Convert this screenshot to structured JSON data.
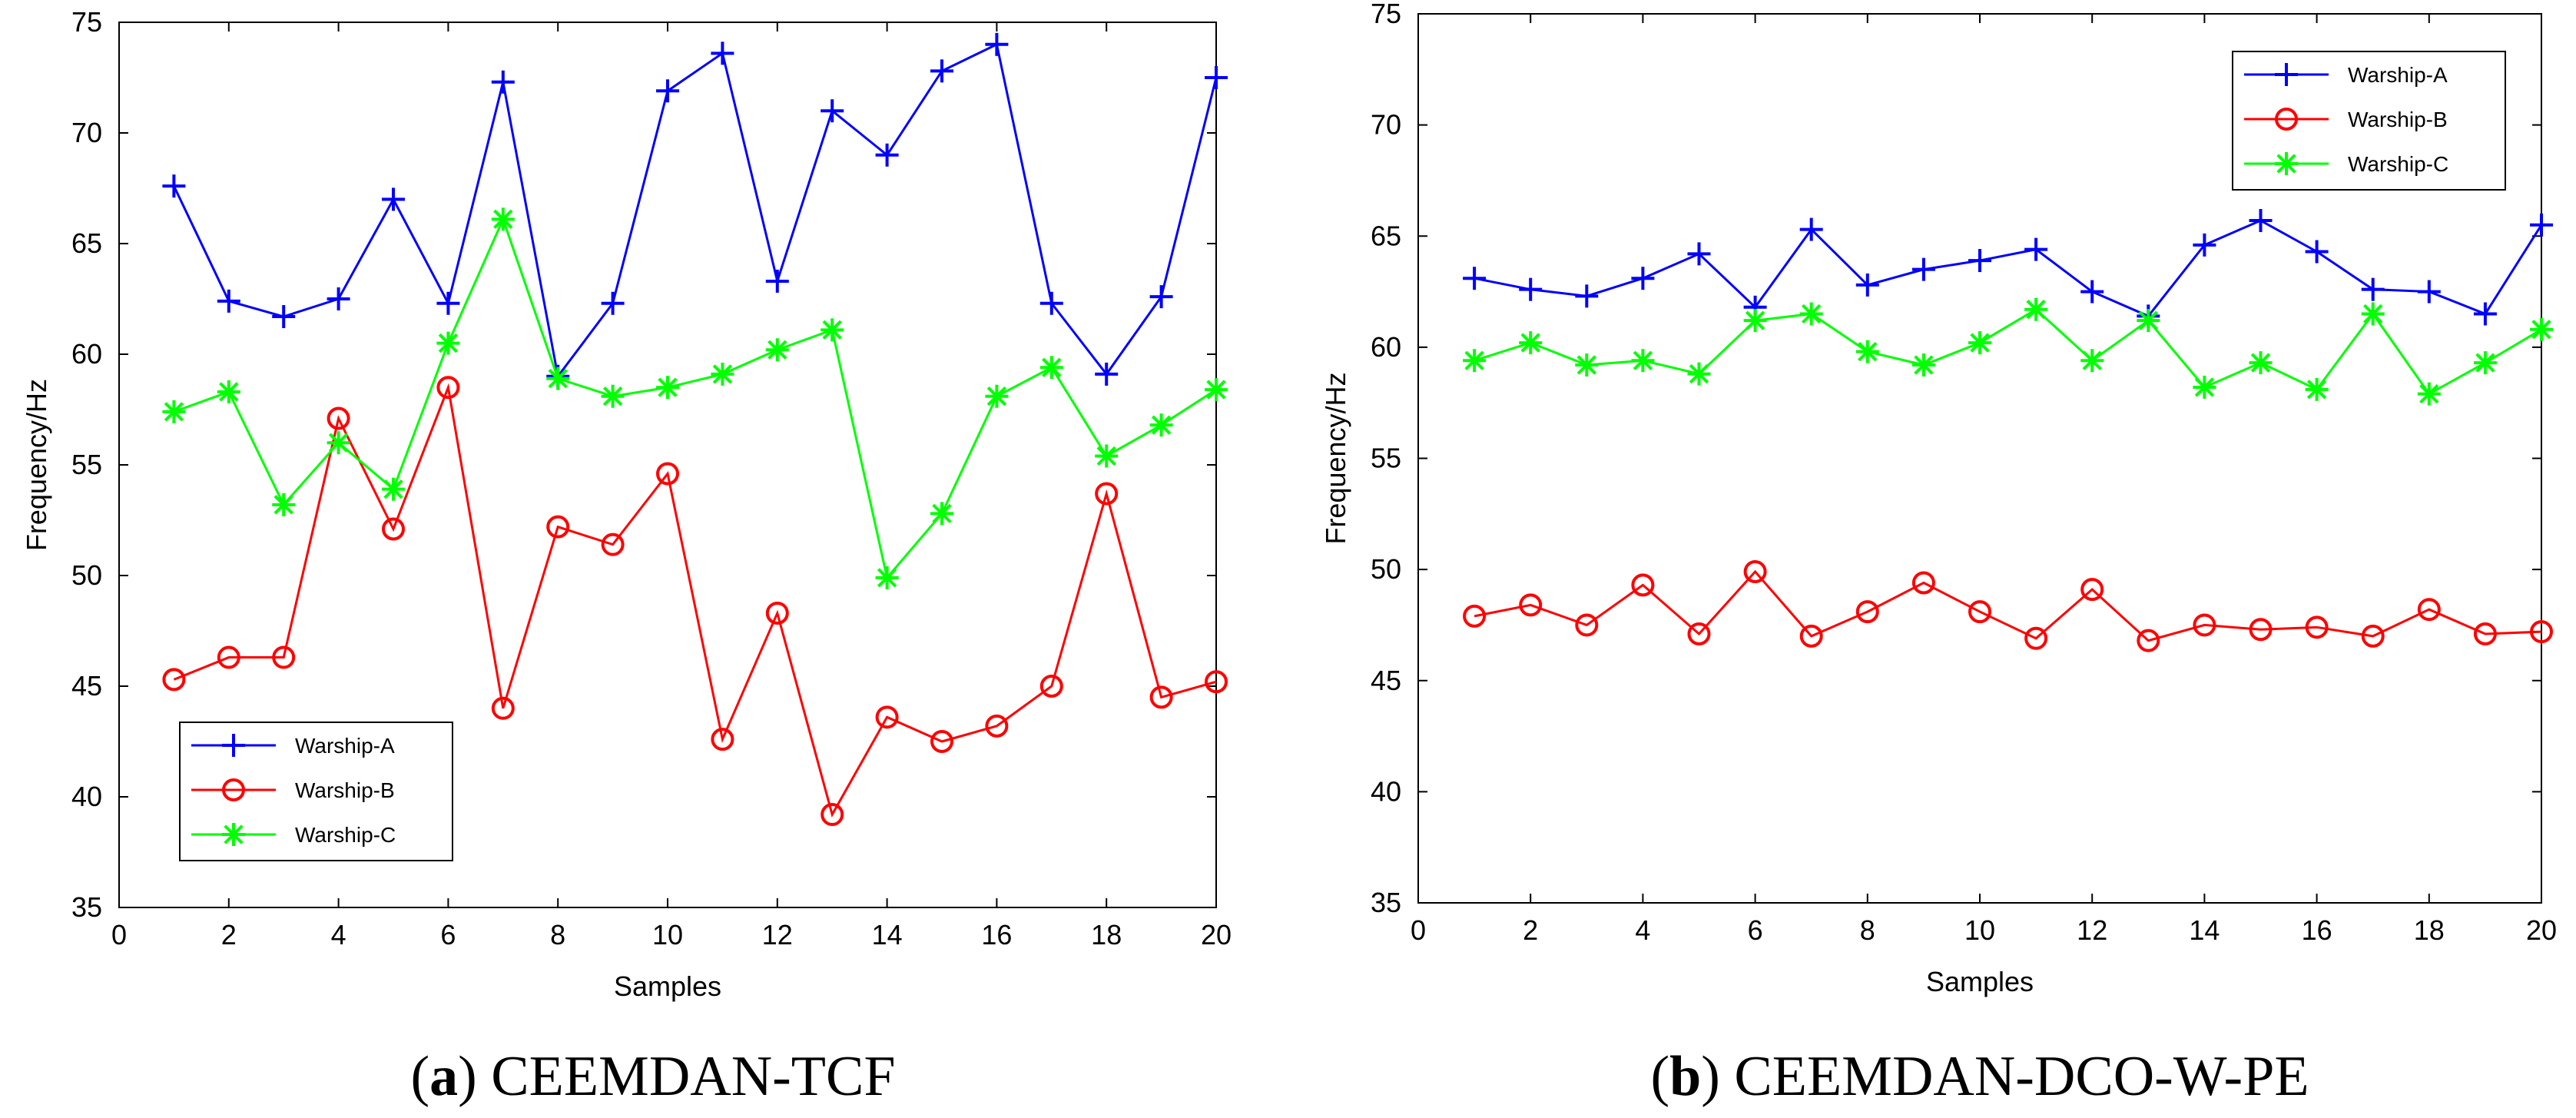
{
  "chart_data": [
    {
      "type": "line",
      "caption_letter": "a",
      "caption_text": "CEEMDAN-TCF",
      "xlabel": "Samples",
      "ylabel": "Frequency/Hz",
      "xlim": [
        0,
        20
      ],
      "ylim": [
        35,
        75
      ],
      "xticks": [
        0,
        2,
        4,
        6,
        8,
        10,
        12,
        14,
        16,
        18,
        20
      ],
      "yticks": [
        35,
        40,
        45,
        50,
        55,
        60,
        65,
        70,
        75
      ],
      "legend_position": "bottom-left",
      "x": [
        1,
        2,
        3,
        4,
        5,
        6,
        7,
        8,
        9,
        10,
        11,
        12,
        13,
        14,
        15,
        16,
        17,
        18,
        19,
        20
      ],
      "series": [
        {
          "name": "Warship-A",
          "color": "#0000ff",
          "marker": "plus",
          "values": [
            67.6,
            62.4,
            61.7,
            62.5,
            67.0,
            62.3,
            72.3,
            59.0,
            62.3,
            71.9,
            73.6,
            63.3,
            71.0,
            69.0,
            72.8,
            74.0,
            62.3,
            59.1,
            62.6,
            72.5
          ]
        },
        {
          "name": "Warship-B",
          "color": "#ff0000",
          "marker": "circle",
          "values": [
            45.3,
            46.3,
            46.3,
            57.1,
            52.1,
            58.5,
            44.0,
            52.2,
            51.4,
            54.6,
            42.6,
            48.3,
            39.2,
            43.6,
            42.5,
            43.2,
            45.0,
            53.7,
            44.5,
            45.2
          ]
        },
        {
          "name": "Warship-C",
          "color": "#00ff00",
          "marker": "asterisk",
          "values": [
            57.4,
            58.3,
            53.2,
            56.0,
            53.9,
            60.5,
            66.1,
            58.9,
            58.1,
            58.5,
            59.1,
            60.2,
            61.1,
            49.9,
            52.8,
            58.1,
            59.4,
            55.4,
            56.8,
            58.4
          ]
        }
      ]
    },
    {
      "type": "line",
      "caption_letter": "b",
      "caption_text": "CEEMDAN-DCO-W-PE",
      "xlabel": "Samples",
      "ylabel": "Frequency/Hz",
      "xlim": [
        0,
        20
      ],
      "ylim": [
        35,
        75
      ],
      "xticks": [
        0,
        2,
        4,
        6,
        8,
        10,
        12,
        14,
        16,
        18,
        20
      ],
      "yticks": [
        35,
        40,
        45,
        50,
        55,
        60,
        65,
        70,
        75
      ],
      "legend_position": "top-right",
      "x": [
        1,
        2,
        3,
        4,
        5,
        6,
        7,
        8,
        9,
        10,
        11,
        12,
        13,
        14,
        15,
        16,
        17,
        18,
        19,
        20
      ],
      "series": [
        {
          "name": "Warship-A",
          "color": "#0000ff",
          "marker": "plus",
          "values": [
            63.1,
            62.6,
            62.3,
            63.1,
            64.2,
            61.8,
            65.3,
            62.8,
            63.5,
            63.9,
            64.4,
            62.5,
            61.4,
            64.6,
            65.7,
            64.3,
            62.6,
            62.5,
            61.5,
            65.5
          ]
        },
        {
          "name": "Warship-B",
          "color": "#ff0000",
          "marker": "circle",
          "values": [
            47.9,
            48.4,
            47.5,
            49.3,
            47.1,
            49.9,
            47.0,
            48.1,
            49.4,
            48.1,
            46.9,
            49.1,
            46.8,
            47.5,
            47.3,
            47.4,
            47.0,
            48.2,
            47.1,
            47.2
          ]
        },
        {
          "name": "Warship-C",
          "color": "#00ff00",
          "marker": "asterisk",
          "values": [
            59.4,
            60.2,
            59.2,
            59.4,
            58.8,
            61.2,
            61.5,
            59.8,
            59.2,
            60.2,
            61.7,
            59.4,
            61.2,
            58.2,
            59.3,
            58.1,
            61.5,
            57.9,
            59.3,
            60.8
          ]
        }
      ]
    }
  ]
}
